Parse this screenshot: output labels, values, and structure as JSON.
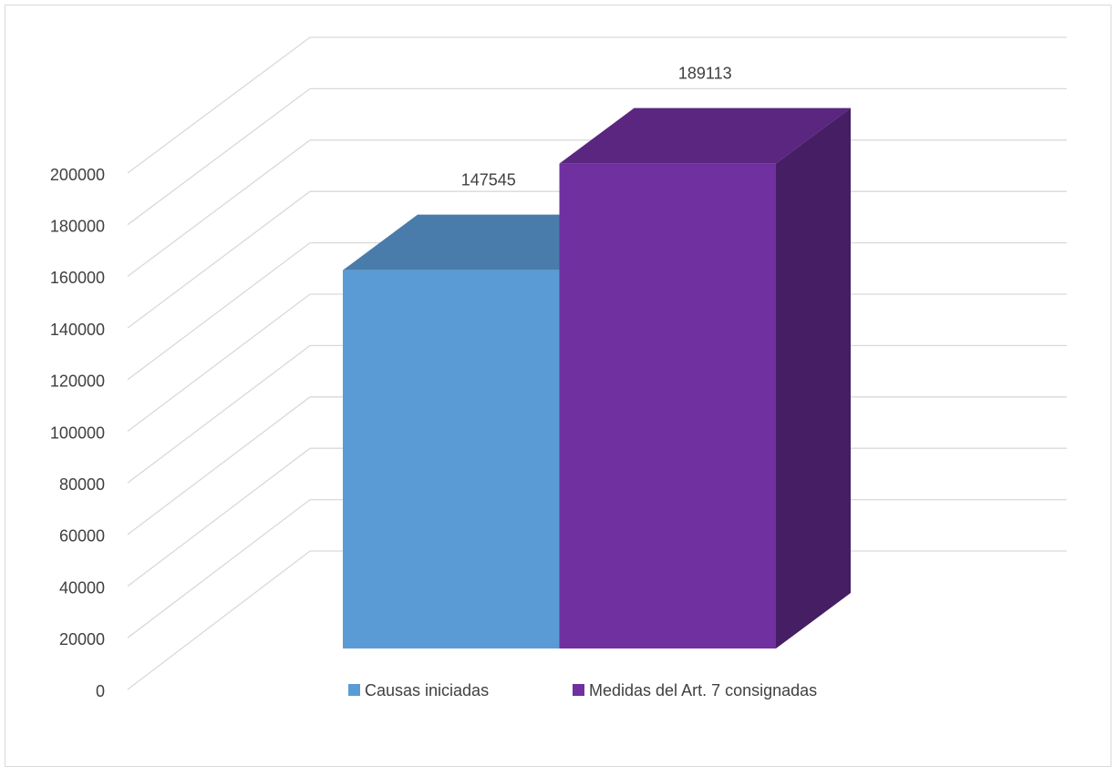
{
  "chart_data": {
    "type": "bar3d",
    "series": [
      {
        "name": "Causas iniciadas",
        "color": "#5b9bd5",
        "values": [
          147545
        ]
      },
      {
        "name": "Medidas del Art. 7 consignadas",
        "color": "#7030a0",
        "values": [
          189113
        ]
      }
    ],
    "ylim": [
      0,
      200000
    ],
    "yticks": [
      0,
      20000,
      40000,
      60000,
      80000,
      100000,
      120000,
      140000,
      160000,
      180000,
      200000
    ],
    "grid": true,
    "legend": "bottom"
  }
}
